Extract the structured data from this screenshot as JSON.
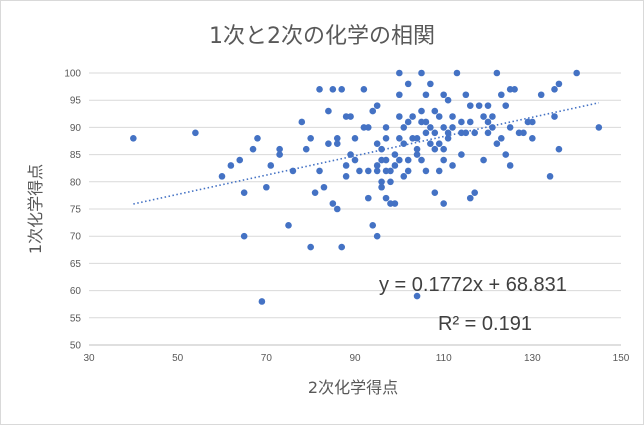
{
  "chart_data": {
    "type": "scatter",
    "title": "1次と2次の化学の相関",
    "xlabel": "2次化学得点",
    "ylabel": "1次化学得点",
    "xlim": [
      30,
      150
    ],
    "ylim": [
      50,
      100
    ],
    "x_ticks": [
      30,
      50,
      70,
      90,
      110,
      130,
      150
    ],
    "y_ticks": [
      50,
      55,
      60,
      65,
      70,
      75,
      80,
      85,
      90,
      95,
      100
    ],
    "grid": "horizontal",
    "legend": "none",
    "marker_color": "#4472c4",
    "trendline": {
      "type": "linear",
      "slope": 0.1772,
      "intercept": 68.831,
      "x_range": [
        40,
        145
      ],
      "equation_label": "y = 0.1772x + 68.831",
      "r2_label": "R² = 0.191"
    },
    "points": [
      [
        40,
        88
      ],
      [
        54,
        89
      ],
      [
        60,
        81
      ],
      [
        62,
        83
      ],
      [
        64,
        84
      ],
      [
        65,
        70
      ],
      [
        65,
        78
      ],
      [
        67,
        86
      ],
      [
        68,
        88
      ],
      [
        69,
        58
      ],
      [
        70,
        79
      ],
      [
        71,
        83
      ],
      [
        73,
        85
      ],
      [
        73,
        86
      ],
      [
        75,
        72
      ],
      [
        76,
        82
      ],
      [
        78,
        91
      ],
      [
        79,
        86
      ],
      [
        80,
        68
      ],
      [
        80,
        88
      ],
      [
        81,
        78
      ],
      [
        82,
        82
      ],
      [
        82,
        97
      ],
      [
        83,
        79
      ],
      [
        84,
        87
      ],
      [
        84,
        93
      ],
      [
        85,
        76
      ],
      [
        85,
        97
      ],
      [
        86,
        75
      ],
      [
        86,
        87
      ],
      [
        86,
        88
      ],
      [
        87,
        68
      ],
      [
        87,
        97
      ],
      [
        88,
        81
      ],
      [
        88,
        92
      ],
      [
        88,
        83
      ],
      [
        89,
        85
      ],
      [
        89,
        92
      ],
      [
        90,
        84
      ],
      [
        90,
        88
      ],
      [
        91,
        82
      ],
      [
        92,
        97
      ],
      [
        92,
        90
      ],
      [
        93,
        82
      ],
      [
        93,
        90
      ],
      [
        93,
        77
      ],
      [
        94,
        93
      ],
      [
        94,
        72
      ],
      [
        95,
        70
      ],
      [
        95,
        82
      ],
      [
        95,
        83
      ],
      [
        95,
        94
      ],
      [
        95,
        87
      ],
      [
        96,
        79
      ],
      [
        96,
        80
      ],
      [
        96,
        86
      ],
      [
        96,
        84
      ],
      [
        97,
        77
      ],
      [
        97,
        82
      ],
      [
        97,
        84
      ],
      [
        97,
        88
      ],
      [
        97,
        90
      ],
      [
        98,
        80
      ],
      [
        98,
        76
      ],
      [
        98,
        82
      ],
      [
        99,
        76
      ],
      [
        99,
        85
      ],
      [
        99,
        83
      ],
      [
        100,
        100
      ],
      [
        100,
        96
      ],
      [
        100,
        88
      ],
      [
        100,
        92
      ],
      [
        100,
        84
      ],
      [
        101,
        81
      ],
      [
        101,
        87
      ],
      [
        101,
        90
      ],
      [
        102,
        82
      ],
      [
        102,
        84
      ],
      [
        102,
        91
      ],
      [
        102,
        98
      ],
      [
        103,
        88
      ],
      [
        103,
        92
      ],
      [
        104,
        59
      ],
      [
        104,
        85
      ],
      [
        104,
        86
      ],
      [
        104,
        88
      ],
      [
        105,
        91
      ],
      [
        105,
        93
      ],
      [
        105,
        84
      ],
      [
        105,
        100
      ],
      [
        106,
        89
      ],
      [
        106,
        96
      ],
      [
        106,
        82
      ],
      [
        106,
        91
      ],
      [
        107,
        87
      ],
      [
        107,
        90
      ],
      [
        107,
        98
      ],
      [
        108,
        78
      ],
      [
        108,
        86
      ],
      [
        108,
        89
      ],
      [
        108,
        93
      ],
      [
        109,
        82
      ],
      [
        109,
        87
      ],
      [
        109,
        92
      ],
      [
        110,
        76
      ],
      [
        110,
        84
      ],
      [
        110,
        86
      ],
      [
        110,
        90
      ],
      [
        110,
        96
      ],
      [
        111,
        88
      ],
      [
        111,
        89
      ],
      [
        111,
        95
      ],
      [
        112,
        83
      ],
      [
        112,
        90
      ],
      [
        112,
        92
      ],
      [
        113,
        100
      ],
      [
        114,
        85
      ],
      [
        114,
        89
      ],
      [
        114,
        91
      ],
      [
        115,
        96
      ],
      [
        115,
        89
      ],
      [
        116,
        77
      ],
      [
        116,
        91
      ],
      [
        116,
        94
      ],
      [
        117,
        78
      ],
      [
        117,
        89
      ],
      [
        118,
        94
      ],
      [
        119,
        84
      ],
      [
        119,
        92
      ],
      [
        120,
        89
      ],
      [
        120,
        94
      ],
      [
        120,
        91
      ],
      [
        121,
        90
      ],
      [
        121,
        92
      ],
      [
        122,
        100
      ],
      [
        122,
        87
      ],
      [
        123,
        88
      ],
      [
        123,
        96
      ],
      [
        124,
        85
      ],
      [
        124,
        94
      ],
      [
        125,
        83
      ],
      [
        125,
        90
      ],
      [
        125,
        97
      ],
      [
        126,
        97
      ],
      [
        127,
        89
      ],
      [
        128,
        89
      ],
      [
        129,
        91
      ],
      [
        130,
        88
      ],
      [
        130,
        91
      ],
      [
        132,
        96
      ],
      [
        134,
        81
      ],
      [
        135,
        92
      ],
      [
        135,
        97
      ],
      [
        136,
        86
      ],
      [
        136,
        98
      ],
      [
        140,
        100
      ],
      [
        145,
        90
      ]
    ]
  }
}
